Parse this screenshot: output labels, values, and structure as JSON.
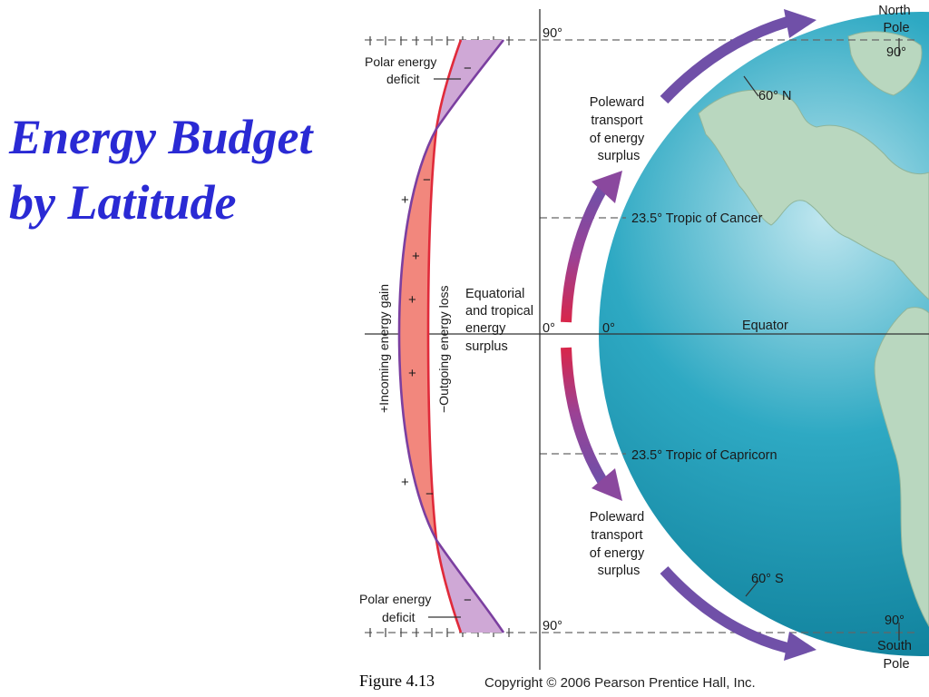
{
  "title": {
    "line1": "Energy Budget",
    "line2": "by Latitude"
  },
  "caption": "Figure 4.13",
  "copyright": "Copyright © 2006 Pearson Prentice Hall, Inc.",
  "graph": {
    "polar_deficit_top": [
      "Polar energy",
      "deficit"
    ],
    "polar_deficit_bottom": [
      "Polar energy",
      "deficit"
    ],
    "incoming_label": "+Incoming energy gain",
    "outgoing_label": "−Outgoing energy loss",
    "equatorial_surplus": [
      "Equatorial",
      "and tropical",
      "energy",
      "surplus"
    ],
    "plus_sign": "+",
    "minus_sign": "−"
  },
  "latitudes": {
    "top": "90°",
    "equator_left": "0°",
    "equator_right": "0°",
    "bottom": "90°",
    "north_pole": [
      "North",
      "Pole"
    ],
    "north_pole_deg": "90°",
    "south_pole": [
      "South",
      "Pole"
    ],
    "south_pole_deg": "90°",
    "lat_60n": "60° N",
    "lat_60s": "60° S",
    "tropic_cancer": "23.5° Tropic of Cancer",
    "tropic_capricorn": "23.5° Tropic of Capricorn",
    "equator": "Equator"
  },
  "transport": {
    "north": [
      "Poleward",
      "transport",
      "of energy",
      "surplus"
    ],
    "south": [
      "Poleward",
      "transport",
      "of energy",
      "surplus"
    ]
  },
  "colors": {
    "title": "#2a2ad4",
    "surplus_fill": "#f2877d",
    "deficit_fill": "#cfa8d6",
    "incoming_curve": "#7b3fa0",
    "outgoing_curve": "#e02a3a",
    "ocean": "#1a9bb5",
    "land": "#b9d7bf",
    "arrow_purple": "#7050a8",
    "arrow_red": "#d8264a"
  }
}
